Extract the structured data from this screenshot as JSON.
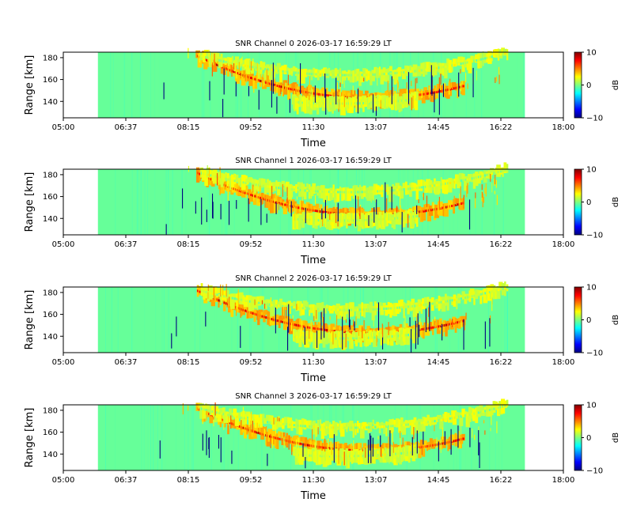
{
  "chart_data": {
    "type": "heatmap",
    "xlabel": "Time",
    "ylabel": "Range [km]",
    "colorbar_label": "dB",
    "x_ticks": [
      "05:00",
      "06:37",
      "08:15",
      "09:52",
      "11:30",
      "13:07",
      "14:45",
      "16:22",
      "18:00"
    ],
    "x_range_hours": [
      5.0,
      18.0
    ],
    "data_window_hours": [
      5.9,
      17.0
    ],
    "ylim": [
      125,
      185
    ],
    "y_ticks": [
      140,
      160,
      180
    ],
    "clim": [
      -10,
      10
    ],
    "colorbar_ticks": [
      10,
      0,
      -10
    ],
    "colormap": [
      "#00007f",
      "#0000ff",
      "#007fff",
      "#00ffff",
      "#7fff7f",
      "#ffff00",
      "#ff7f00",
      "#ff0000",
      "#7f0000"
    ],
    "background_snr": -0.5,
    "features": [
      {
        "name": "main-echo-band",
        "center_hour": 13.0,
        "min_range_km": 143,
        "curvature": 0.95,
        "snr_db": 9,
        "x_start_hour": 8.5,
        "x_end_hour": 15.4
      },
      {
        "name": "upper-echo-band",
        "center_hour": 12.4,
        "min_range_km": 164,
        "curvature": 0.6,
        "snr_db": 3,
        "x_start_hour": 8.6,
        "x_end_hour": 16.6
      },
      {
        "name": "lower-echo-band",
        "center_hour": 12.2,
        "min_range_km": 138,
        "curvature": 0.5,
        "snr_db": 3,
        "x_start_hour": 11.0,
        "x_end_hour": 14.2
      }
    ],
    "panels": [
      {
        "title": "SNR Channel 0 2026-03-17 16:59:29 LT",
        "channel": 0
      },
      {
        "title": "SNR Channel 1 2026-03-17 16:59:29 LT",
        "channel": 1
      },
      {
        "title": "SNR Channel 2 2026-03-17 16:59:29 LT",
        "channel": 2
      },
      {
        "title": "SNR Channel 3 2026-03-17 16:59:29 LT",
        "channel": 3
      }
    ]
  }
}
